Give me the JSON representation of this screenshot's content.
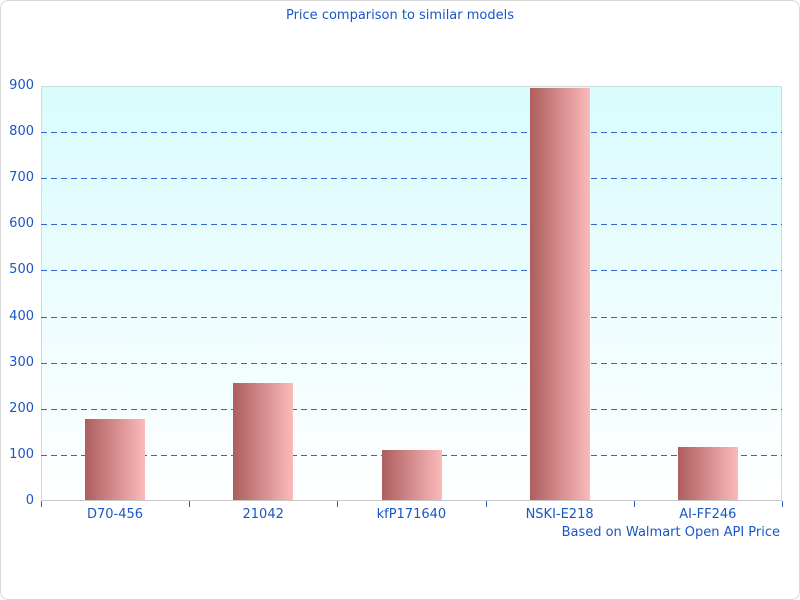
{
  "chart_data": {
    "type": "bar",
    "title": "Price comparison to similar models",
    "caption": "Based on Walmart Open API Price",
    "categories": [
      "D70-456",
      "21042",
      "kfP171640",
      "NSKI-E218",
      "AI-FF246"
    ],
    "values": [
      177,
      255,
      110,
      896,
      117
    ],
    "xlabel": "",
    "ylabel": "",
    "ylim": [
      0,
      900
    ],
    "ytick_interval": 100,
    "grid": "horizontal-dashed",
    "legend": "none",
    "colors": {
      "text": "#1a56c8",
      "gridline": "#3366cc",
      "bar_gradient_left": "#ad5e5e",
      "bar_gradient_right": "#fbbaba",
      "plot_bg_top": "#d9fcfd",
      "plot_bg_bottom": "#ffffff",
      "plot_border": "#ccdcdc",
      "page_border": "#d7d7d7"
    }
  }
}
